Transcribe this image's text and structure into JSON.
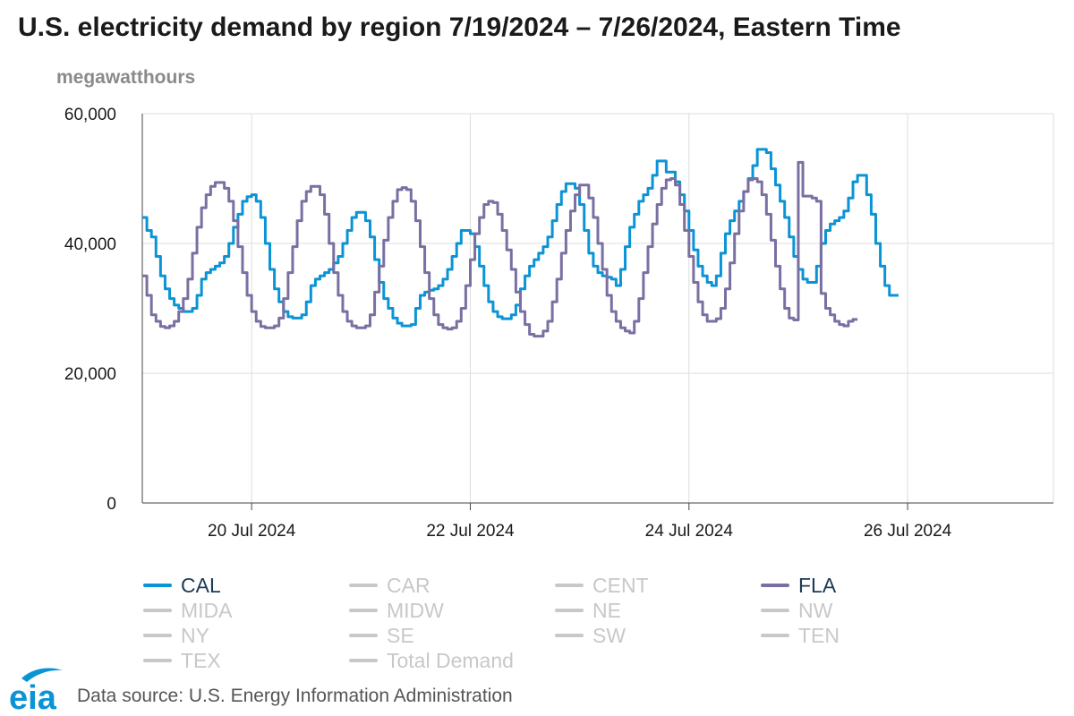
{
  "title": "U.S. electricity demand by region 7/19/2024 – 7/26/2024, Eastern Time",
  "units_label": "megawatthours",
  "source": "Data source: U.S. Energy Information Administration",
  "logo_text": "eia",
  "colors": {
    "cal": "#0a94d6",
    "fla": "#7b6fa2",
    "inactive": "#c8c8c8",
    "grid": "#dddddd",
    "axis": "#444444",
    "legend_text": "#1b3a57",
    "logo_blue": "#0a94d6"
  },
  "legend": [
    {
      "name": "CAL",
      "active": true,
      "color": "#0a94d6"
    },
    {
      "name": "CAR",
      "active": false,
      "color": "#c8c8c8"
    },
    {
      "name": "CENT",
      "active": false,
      "color": "#c8c8c8"
    },
    {
      "name": "FLA",
      "active": true,
      "color": "#7b6fa2"
    },
    {
      "name": "MIDA",
      "active": false,
      "color": "#c8c8c8"
    },
    {
      "name": "MIDW",
      "active": false,
      "color": "#c8c8c8"
    },
    {
      "name": "NE",
      "active": false,
      "color": "#c8c8c8"
    },
    {
      "name": "NW",
      "active": false,
      "color": "#c8c8c8"
    },
    {
      "name": "NY",
      "active": false,
      "color": "#c8c8c8"
    },
    {
      "name": "SE",
      "active": false,
      "color": "#c8c8c8"
    },
    {
      "name": "SW",
      "active": false,
      "color": "#c8c8c8"
    },
    {
      "name": "TEN",
      "active": false,
      "color": "#c8c8c8"
    },
    {
      "name": "TEX",
      "active": false,
      "color": "#c8c8c8"
    },
    {
      "name": "Total Demand",
      "active": false,
      "color": "#c8c8c8"
    }
  ],
  "chart_data": {
    "type": "line",
    "title": "U.S. electricity demand by region 7/19/2024 – 7/26/2024, Eastern Time",
    "ylabel": "megawatthours",
    "ylim": [
      0,
      60000
    ],
    "yticks": [
      0,
      20000,
      40000,
      60000
    ],
    "ytick_labels": [
      "0",
      "20,000",
      "40,000",
      "60,000"
    ],
    "xlim_hours": [
      0,
      200
    ],
    "xticks": [
      {
        "hour": 24,
        "label": "20 Jul 2024"
      },
      {
        "hour": 72,
        "label": "22 Jul 2024"
      },
      {
        "hour": 120,
        "label": "24 Jul 2024"
      },
      {
        "hour": 168,
        "label": "26 Jul 2024"
      }
    ],
    "x_axis": "hours since 7/19/2024 00:00 ET",
    "series": [
      {
        "name": "CAL",
        "hour_values": [
          44000,
          42000,
          41000,
          38000,
          35000,
          33000,
          31500,
          30500,
          30000,
          29500,
          29500,
          30000,
          32000,
          34500,
          35500,
          36000,
          36500,
          37000,
          38000,
          40000,
          42500,
          44500,
          46500,
          47200,
          47500,
          46500,
          44000,
          40000,
          36000,
          33000,
          31000,
          29500,
          28700,
          28500,
          28500,
          29000,
          31000,
          33500,
          34500,
          35000,
          35500,
          36000,
          37000,
          38000,
          40000,
          42000,
          44000,
          44800,
          44800,
          43500,
          41000,
          37500,
          34000,
          31500,
          30000,
          28500,
          27700,
          27300,
          27300,
          27500,
          30000,
          32000,
          32500,
          32800,
          33000,
          33500,
          34500,
          36000,
          38000,
          40000,
          42000,
          42000,
          41500,
          39500,
          36500,
          33500,
          31000,
          29500,
          28700,
          28400,
          28400,
          29000,
          30500,
          33000,
          35000,
          36500,
          37500,
          38500,
          39500,
          41000,
          43500,
          46000,
          48000,
          49200,
          49200,
          48500,
          46000,
          42000,
          38500,
          36500,
          35500,
          35000,
          34800,
          34500,
          33500,
          36000,
          39500,
          42500,
          44500,
          46500,
          47500,
          48500,
          50500,
          52700,
          52700,
          51000,
          51000,
          49500,
          47500,
          45000,
          42000,
          39000,
          36500,
          35000,
          34000,
          33500,
          35000,
          38500,
          41500,
          43500,
          45000,
          46500,
          48000,
          50000,
          52000,
          54500,
          54500,
          54000,
          51500,
          49000,
          46500,
          44000,
          41000,
          38000,
          36000,
          34500,
          34000,
          34000,
          36500,
          40000,
          42000,
          43000,
          43500,
          44000,
          45000,
          47000,
          49500,
          50500,
          50500,
          47500,
          44500,
          40000,
          36500,
          33500,
          32000,
          32000
        ]
      },
      {
        "name": "FLA",
        "hour_values": [
          35000,
          32000,
          29000,
          28000,
          27200,
          27000,
          27300,
          28000,
          29500,
          31500,
          34500,
          38500,
          42500,
          45500,
          47500,
          48800,
          49400,
          49400,
          48500,
          46500,
          43500,
          39500,
          35500,
          32000,
          29500,
          28000,
          27200,
          27000,
          27000,
          27300,
          28500,
          31500,
          35500,
          39500,
          43500,
          46500,
          48000,
          48800,
          48800,
          47500,
          44500,
          40000,
          35500,
          32000,
          29500,
          28000,
          27300,
          27000,
          27000,
          27300,
          29000,
          32500,
          36500,
          40500,
          44000,
          46500,
          48300,
          48600,
          48300,
          46500,
          43500,
          39500,
          35500,
          31500,
          29000,
          27500,
          27000,
          26800,
          27000,
          28000,
          30000,
          33500,
          37500,
          41500,
          44000,
          46000,
          46500,
          46300,
          44500,
          42000,
          39000,
          36000,
          32500,
          29500,
          27500,
          26000,
          25700,
          25700,
          26500,
          28000,
          31000,
          34500,
          38500,
          42000,
          45000,
          47500,
          49000,
          49000,
          47000,
          44000,
          40000,
          36000,
          32000,
          29500,
          28000,
          27000,
          26500,
          26200,
          28000,
          31500,
          35500,
          39500,
          43000,
          46000,
          48500,
          49800,
          50000,
          49000,
          46000,
          42000,
          38000,
          34000,
          31000,
          29000,
          28000,
          28000,
          28400,
          30000,
          33000,
          37000,
          41500,
          45000,
          48000,
          49800,
          50000,
          49500,
          47500,
          44500,
          40500,
          36500,
          33000,
          30000,
          28500,
          28200,
          52500,
          47300,
          47300,
          47000,
          46500,
          32300,
          30000,
          29000,
          28000,
          27500,
          27300,
          28000,
          28300
        ]
      }
    ]
  }
}
